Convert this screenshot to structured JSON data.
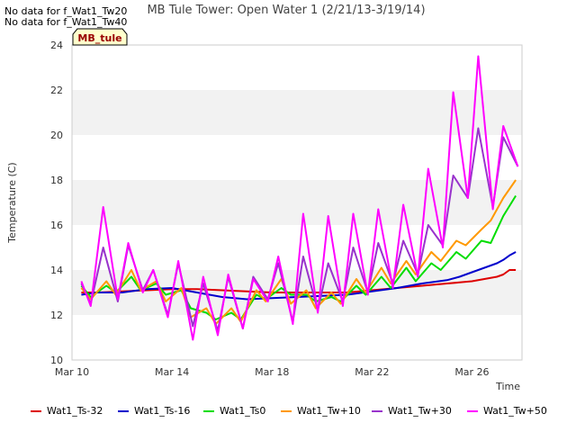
{
  "notes": [
    "No data for f_Wat1_Tw20",
    "No data for f_Wat1_Tw40"
  ],
  "badge": "MB_tule",
  "chart_data": {
    "type": "line",
    "title": "MB Tule Tower: Open Water 1 (2/21/13-3/19/14)",
    "xlabel": "Time",
    "ylabel": "Temperature (C)",
    "ylim": [
      10,
      24
    ],
    "y_ticks": [
      10,
      12,
      14,
      16,
      18,
      20,
      22,
      24
    ],
    "xlim": [
      "2013-03-10",
      "2013-03-28"
    ],
    "x_ticks": [
      {
        "date": "2013-03-10",
        "label": "Mar 10"
      },
      {
        "date": "2013-03-14",
        "label": "Mar 14"
      },
      {
        "date": "2013-03-18",
        "label": "Mar 18"
      },
      {
        "date": "2013-03-22",
        "label": "Mar 22"
      },
      {
        "date": "2013-03-26",
        "label": "Mar 26"
      }
    ],
    "grid": "horizontal bands",
    "legend_position": "bottom",
    "series": [
      {
        "name": "Wat1_Ts-32",
        "color": "#dd0000",
        "x": [
          "2013-03-10 09:00",
          "2013-03-11 00:00",
          "2013-03-12 00:00",
          "2013-03-13 00:00",
          "2013-03-14 00:00",
          "2013-03-15 00:00",
          "2013-03-16 00:00",
          "2013-03-17 00:00",
          "2013-03-18 00:00",
          "2013-03-19 00:00",
          "2013-03-20 00:00",
          "2013-03-21 00:00",
          "2013-03-22 00:00",
          "2013-03-23 00:00",
          "2013-03-24 00:00",
          "2013-03-25 00:00",
          "2013-03-25 12:00",
          "2013-03-26 00:00",
          "2013-03-26 12:00",
          "2013-03-27 00:00",
          "2013-03-27 06:00",
          "2013-03-27 12:00",
          "2013-03-27 18:00"
        ],
        "y": [
          13.0,
          13.0,
          13.05,
          13.1,
          13.15,
          13.15,
          13.1,
          13.05,
          13.0,
          13.0,
          13.0,
          13.0,
          13.1,
          13.2,
          13.3,
          13.4,
          13.45,
          13.5,
          13.6,
          13.7,
          13.8,
          14.0,
          14.0
        ]
      },
      {
        "name": "Wat1_Ts-16",
        "color": "#0000cc",
        "x": [
          "2013-03-10 09:00",
          "2013-03-11 00:00",
          "2013-03-12 00:00",
          "2013-03-13 00:00",
          "2013-03-14 00:00",
          "2013-03-15 00:00",
          "2013-03-16 00:00",
          "2013-03-17 00:00",
          "2013-03-18 00:00",
          "2013-03-19 00:00",
          "2013-03-20 00:00",
          "2013-03-21 00:00",
          "2013-03-22 00:00",
          "2013-03-23 00:00",
          "2013-03-24 00:00",
          "2013-03-25 00:00",
          "2013-03-25 12:00",
          "2013-03-26 00:00",
          "2013-03-26 12:00",
          "2013-03-27 00:00",
          "2013-03-27 06:00",
          "2013-03-27 12:00",
          "2013-03-27 18:00"
        ],
        "y": [
          12.9,
          13.0,
          13.0,
          13.15,
          13.2,
          13.0,
          12.8,
          12.7,
          12.75,
          12.8,
          12.85,
          12.9,
          13.05,
          13.2,
          13.4,
          13.55,
          13.7,
          13.9,
          14.1,
          14.3,
          14.45,
          14.65,
          14.8
        ]
      },
      {
        "name": "Wat1_Ts0",
        "color": "#00dd00",
        "x": [
          "2013-03-10 09:00",
          "2013-03-10 18:00",
          "2013-03-11 09:00",
          "2013-03-11 18:00",
          "2013-03-12 09:00",
          "2013-03-12 18:00",
          "2013-03-13 09:00",
          "2013-03-13 18:00",
          "2013-03-14 09:00",
          "2013-03-14 18:00",
          "2013-03-15 09:00",
          "2013-03-15 18:00",
          "2013-03-16 09:00",
          "2013-03-16 18:00",
          "2013-03-17 09:00",
          "2013-03-17 18:00",
          "2013-03-18 09:00",
          "2013-03-18 18:00",
          "2013-03-19 09:00",
          "2013-03-19 18:00",
          "2013-03-20 09:00",
          "2013-03-20 18:00",
          "2013-03-21 09:00",
          "2013-03-21 18:00",
          "2013-03-22 09:00",
          "2013-03-22 18:00",
          "2013-03-23 09:00",
          "2013-03-23 18:00",
          "2013-03-24 09:00",
          "2013-03-24 18:00",
          "2013-03-25 09:00",
          "2013-03-25 18:00",
          "2013-03-26 09:00",
          "2013-03-26 18:00",
          "2013-03-27 06:00",
          "2013-03-27 18:00"
        ],
        "y": [
          13.3,
          12.8,
          13.3,
          13.0,
          13.7,
          13.1,
          13.4,
          12.9,
          13.1,
          12.3,
          12.1,
          11.8,
          12.1,
          11.8,
          12.9,
          12.7,
          13.2,
          12.9,
          12.9,
          12.6,
          12.8,
          12.6,
          13.3,
          12.9,
          13.7,
          13.2,
          14.1,
          13.5,
          14.3,
          14.0,
          14.8,
          14.5,
          15.3,
          15.2,
          16.4,
          17.3
        ]
      },
      {
        "name": "Wat1_Tw+10",
        "color": "#ff9900",
        "x": [
          "2013-03-10 09:00",
          "2013-03-10 18:00",
          "2013-03-11 09:00",
          "2013-03-11 18:00",
          "2013-03-12 09:00",
          "2013-03-12 18:00",
          "2013-03-13 09:00",
          "2013-03-13 18:00",
          "2013-03-14 09:00",
          "2013-03-14 18:00",
          "2013-03-15 09:00",
          "2013-03-15 18:00",
          "2013-03-16 09:00",
          "2013-03-16 18:00",
          "2013-03-17 09:00",
          "2013-03-17 18:00",
          "2013-03-18 09:00",
          "2013-03-18 18:00",
          "2013-03-19 09:00",
          "2013-03-19 18:00",
          "2013-03-20 09:00",
          "2013-03-20 18:00",
          "2013-03-21 09:00",
          "2013-03-21 18:00",
          "2013-03-22 09:00",
          "2013-03-22 18:00",
          "2013-03-23 09:00",
          "2013-03-23 18:00",
          "2013-03-24 09:00",
          "2013-03-24 18:00",
          "2013-03-25 09:00",
          "2013-03-25 18:00",
          "2013-03-26 09:00",
          "2013-03-26 18:00",
          "2013-03-27 06:00",
          "2013-03-27 18:00"
        ],
        "y": [
          13.2,
          12.7,
          13.5,
          12.9,
          14.0,
          13.1,
          13.5,
          12.6,
          13.2,
          11.9,
          12.3,
          11.6,
          12.3,
          11.7,
          13.1,
          12.6,
          13.6,
          12.5,
          13.1,
          12.3,
          13.0,
          12.5,
          13.6,
          13.0,
          14.1,
          13.4,
          14.4,
          13.8,
          14.8,
          14.4,
          15.3,
          15.1,
          15.8,
          16.2,
          17.2,
          18.0
        ]
      },
      {
        "name": "Wat1_Tw+30",
        "color": "#9933cc",
        "x": [
          "2013-03-10 09:00",
          "2013-03-10 18:00",
          "2013-03-11 06:00",
          "2013-03-11 20:00",
          "2013-03-12 06:00",
          "2013-03-12 20:00",
          "2013-03-13 06:00",
          "2013-03-13 20:00",
          "2013-03-14 06:00",
          "2013-03-14 20:00",
          "2013-03-15 06:00",
          "2013-03-15 20:00",
          "2013-03-16 06:00",
          "2013-03-16 20:00",
          "2013-03-17 06:00",
          "2013-03-17 20:00",
          "2013-03-18 06:00",
          "2013-03-18 20:00",
          "2013-03-19 06:00",
          "2013-03-19 20:00",
          "2013-03-20 06:00",
          "2013-03-20 20:00",
          "2013-03-21 06:00",
          "2013-03-21 20:00",
          "2013-03-22 06:00",
          "2013-03-22 20:00",
          "2013-03-23 06:00",
          "2013-03-23 20:00",
          "2013-03-24 06:00",
          "2013-03-24 20:00",
          "2013-03-25 06:00",
          "2013-03-25 20:00",
          "2013-03-26 06:00",
          "2013-03-26 20:00",
          "2013-03-27 06:00",
          "2013-03-27 20:00"
        ],
        "y": [
          13.4,
          12.5,
          15.0,
          12.6,
          15.1,
          13.1,
          14.0,
          12.0,
          14.3,
          11.5,
          13.4,
          11.3,
          13.7,
          11.4,
          13.7,
          12.7,
          14.3,
          11.7,
          14.6,
          12.2,
          14.3,
          12.6,
          15.0,
          13.0,
          15.2,
          13.4,
          15.3,
          13.8,
          16.0,
          15.1,
          18.2,
          17.2,
          20.3,
          16.8,
          19.9,
          18.6
        ]
      },
      {
        "name": "Wat1_Tw+50",
        "color": "#ff00ff",
        "x": [
          "2013-03-10 09:00",
          "2013-03-10 18:00",
          "2013-03-11 06:00",
          "2013-03-11 20:00",
          "2013-03-12 06:00",
          "2013-03-12 20:00",
          "2013-03-13 06:00",
          "2013-03-13 20:00",
          "2013-03-14 06:00",
          "2013-03-14 20:00",
          "2013-03-15 06:00",
          "2013-03-15 20:00",
          "2013-03-16 06:00",
          "2013-03-16 20:00",
          "2013-03-17 06:00",
          "2013-03-17 20:00",
          "2013-03-18 06:00",
          "2013-03-18 20:00",
          "2013-03-19 06:00",
          "2013-03-19 20:00",
          "2013-03-20 06:00",
          "2013-03-20 20:00",
          "2013-03-21 06:00",
          "2013-03-21 20:00",
          "2013-03-22 06:00",
          "2013-03-22 20:00",
          "2013-03-23 06:00",
          "2013-03-23 20:00",
          "2013-03-24 06:00",
          "2013-03-24 20:00",
          "2013-03-25 06:00",
          "2013-03-25 20:00",
          "2013-03-26 06:00",
          "2013-03-26 20:00",
          "2013-03-27 06:00",
          "2013-03-27 20:00"
        ],
        "y": [
          13.5,
          12.4,
          16.8,
          12.7,
          15.2,
          13.0,
          14.0,
          11.9,
          14.4,
          10.9,
          13.7,
          11.1,
          13.8,
          11.4,
          13.6,
          12.6,
          14.6,
          11.6,
          16.5,
          12.1,
          16.4,
          12.4,
          16.5,
          12.9,
          16.7,
          13.2,
          16.9,
          13.7,
          18.5,
          15.0,
          21.9,
          17.2,
          23.5,
          16.7,
          20.4,
          18.6
        ]
      }
    ]
  }
}
